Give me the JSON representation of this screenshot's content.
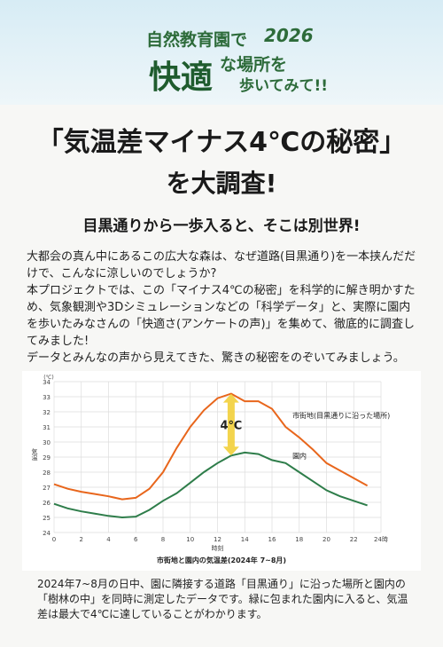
{
  "header": {
    "line1": "自然教育園で",
    "year": "2026",
    "big": "快適",
    "line2": "な場所を",
    "line3": "歩いてみて!!"
  },
  "title": {
    "line1": "「気温差マイナス4℃の秘密」",
    "line2": "を大調査!"
  },
  "subtitle": "目黒通りから一歩入ると、そこは別世界!",
  "paragraphs": [
    "大都会の真ん中にあるこの広大な森は、なぜ道路(目黒通り)を一本挟んだだけで、こんなに涼しいのでしょうか?",
    "本プロジェクトでは、この「マイナス4℃の秘密」を科学的に解き明かすため、気象観測や3Dシミュレーションなどの「科学データ」と、実際に園内を歩いたみなさんの「快適さ(アンケートの声)」を集めて、徹底的に調査してみました!",
    "データとみんなの声から見えてきた、驚きの秘密をのぞいてみましょう。"
  ],
  "chart_data": {
    "type": "line",
    "caption": "市街地と園内の気温差(2024年 7~8月)",
    "x_label": "時刻",
    "y_label": "気温",
    "y_unit": "(℃)",
    "annotation": "4℃",
    "x": [
      0,
      1,
      2,
      3,
      4,
      5,
      6,
      7,
      8,
      9,
      10,
      11,
      12,
      13,
      14,
      15,
      16,
      17,
      18,
      19,
      20,
      21,
      22,
      23
    ],
    "series": [
      {
        "name": "市街地(目黒通りに沿った場所)",
        "color": "#e8661c",
        "values": [
          27.2,
          26.9,
          26.7,
          26.55,
          26.4,
          26.2,
          26.3,
          26.9,
          28,
          29.6,
          31,
          32.1,
          32.9,
          33.2,
          32.7,
          32.7,
          32.2,
          31,
          30.3,
          29.5,
          28.6,
          28.1,
          27.6,
          27.1
        ]
      },
      {
        "name": "園内",
        "color": "#2e7d4a",
        "values": [
          25.9,
          25.6,
          25.4,
          25.25,
          25.1,
          25.0,
          25.05,
          25.5,
          26.1,
          26.6,
          27.3,
          28,
          28.6,
          29.1,
          29.3,
          29.2,
          28.8,
          28.6,
          28.0,
          27.4,
          26.8,
          26.4,
          26.1,
          25.8
        ]
      }
    ],
    "xlim": [
      0,
      24
    ],
    "xticks": [
      0,
      2,
      4,
      6,
      8,
      10,
      12,
      14,
      16,
      18,
      20,
      22,
      {
        "value": 24,
        "label": "24時"
      }
    ],
    "ylim": [
      24,
      34
    ],
    "yticks": [
      24,
      25,
      26,
      27,
      28,
      29,
      30,
      31,
      32,
      33,
      34
    ],
    "grid": true
  },
  "footer": "2024年7~8月の日中、園に隣接する道路「目黒通り」に沿った場所と園内の「樹林の中」を同時に測定したデータです。緑に包まれた園内に入ると、気温差は最大で4℃に達していることがわかります。"
}
